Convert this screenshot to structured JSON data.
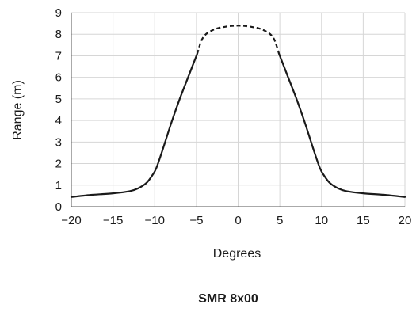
{
  "chart_data": {
    "type": "line",
    "xlabel": "Degrees",
    "ylabel": "Range (m)",
    "caption": "SMR 8x00",
    "xlim": [
      -20,
      20
    ],
    "ylim": [
      0,
      9
    ],
    "xticks": [
      -20,
      -15,
      -10,
      -5,
      0,
      5,
      10,
      15,
      20
    ],
    "yticks": [
      0,
      1,
      2,
      3,
      4,
      5,
      6,
      7,
      8,
      9
    ],
    "xtick_labels": [
      "−20",
      "−15",
      "−10",
      "−5",
      "0",
      "5",
      "10",
      "15",
      "20"
    ],
    "ytick_labels": [
      "0",
      "1",
      "2",
      "3",
      "4",
      "5",
      "6",
      "7",
      "8",
      "9"
    ],
    "grid": true,
    "legend": "none",
    "series": [
      {
        "line_style": "solid",
        "color": "#1a1a1a",
        "x": [
          -20,
          -17.5,
          -15,
          -13,
          -12,
          -11,
          -10.3,
          -9.8,
          -9,
          -8,
          -7,
          -6,
          -4.9
        ],
        "y": [
          0.45,
          0.55,
          0.62,
          0.72,
          0.85,
          1.1,
          1.45,
          1.8,
          2.7,
          3.9,
          5.0,
          6.0,
          7.1
        ]
      },
      {
        "line_style": "dashed",
        "color": "#1a1a1a",
        "x": [
          -4.9,
          -4.2,
          -3,
          -1.5,
          0,
          1.5,
          3,
          4.2,
          4.9
        ],
        "y": [
          7.1,
          7.85,
          8.2,
          8.35,
          8.4,
          8.35,
          8.2,
          7.85,
          7.1
        ]
      },
      {
        "line_style": "solid",
        "color": "#1a1a1a",
        "x": [
          4.9,
          6,
          7,
          8,
          9,
          9.8,
          10.3,
          11,
          12,
          13,
          15,
          17.5,
          20
        ],
        "y": [
          7.1,
          6.0,
          5.0,
          3.9,
          2.7,
          1.8,
          1.45,
          1.1,
          0.85,
          0.72,
          0.62,
          0.55,
          0.45
        ]
      }
    ]
  }
}
